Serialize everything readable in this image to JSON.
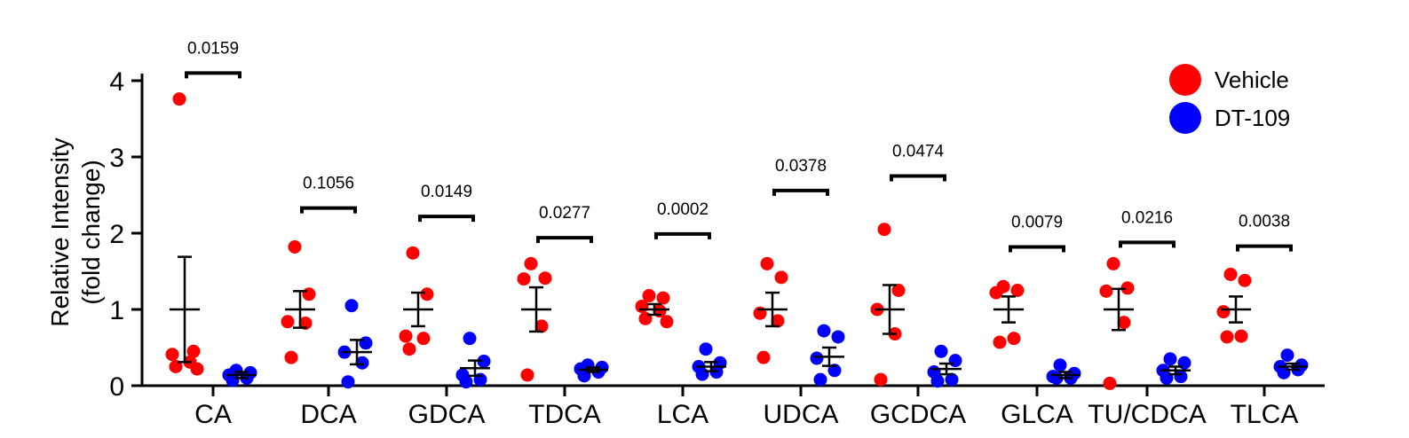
{
  "chart_data": {
    "type": "scatter",
    "title": "",
    "ylabel_line1": "Relative Intensity",
    "ylabel_line2": "(fold change)",
    "xlabel": "",
    "ylim": [
      0,
      4.2
    ],
    "yticks": [
      "0",
      "1",
      "2",
      "3",
      "4"
    ],
    "legend_position": "top-right",
    "colors": {
      "Vehicle": "#ff0000",
      "DT-109": "#0000ff",
      "axis": "#000000"
    },
    "series_names": [
      "Vehicle",
      "DT-109"
    ],
    "categories": [
      {
        "label": "CA",
        "p_value": "0.0159",
        "bracket_y": 4.1,
        "vehicle": {
          "points": [
            3.76,
            0.45,
            0.41,
            0.31,
            0.25,
            0.22
          ],
          "mean": 1.0,
          "sem": 0.69
        },
        "dt109": {
          "points": [
            0.2,
            0.17,
            0.14,
            0.1,
            0.07
          ],
          "mean": 0.14,
          "sem": 0.04
        }
      },
      {
        "label": "DCA",
        "p_value": "0.1056",
        "bracket_y": 2.33,
        "vehicle": {
          "points": [
            1.82,
            1.2,
            0.84,
            0.82,
            0.37
          ],
          "mean": 1.0,
          "sem": 0.24
        },
        "dt109": {
          "points": [
            1.05,
            0.56,
            0.44,
            0.3,
            0.05
          ],
          "mean": 0.44,
          "sem": 0.16
        }
      },
      {
        "label": "GDCA",
        "p_value": "0.0149",
        "bracket_y": 2.22,
        "vehicle": {
          "points": [
            1.74,
            1.2,
            0.65,
            0.62,
            0.48
          ],
          "mean": 1.0,
          "sem": 0.22
        },
        "dt109": {
          "points": [
            0.62,
            0.32,
            0.14,
            0.08,
            0.05
          ],
          "mean": 0.23,
          "sem": 0.1
        }
      },
      {
        "label": "TDCA",
        "p_value": "0.0277",
        "bracket_y": 1.94,
        "vehicle": {
          "points": [
            1.6,
            1.41,
            1.4,
            0.78,
            0.14
          ],
          "mean": 1.0,
          "sem": 0.29
        },
        "dt109": {
          "points": [
            0.27,
            0.24,
            0.22,
            0.18,
            0.13
          ],
          "mean": 0.21,
          "sem": 0.03
        }
      },
      {
        "label": "LCA",
        "p_value": "0.0002",
        "bracket_y": 1.99,
        "vehicle": {
          "points": [
            1.18,
            1.15,
            1.04,
            0.98,
            0.88,
            0.84
          ],
          "mean": 1.0,
          "sem": 0.07
        },
        "dt109": {
          "points": [
            0.48,
            0.3,
            0.25,
            0.18,
            0.15
          ],
          "mean": 0.25,
          "sem": 0.06
        }
      },
      {
        "label": "UDCA",
        "p_value": "0.0378",
        "bracket_y": 2.56,
        "vehicle": {
          "points": [
            1.6,
            1.42,
            0.95,
            0.85,
            0.37
          ],
          "mean": 1.0,
          "sem": 0.22
        },
        "dt109": {
          "points": [
            0.72,
            0.64,
            0.36,
            0.2,
            0.08
          ],
          "mean": 0.38,
          "sem": 0.12
        }
      },
      {
        "label": "GCDCA",
        "p_value": "0.0474",
        "bracket_y": 2.75,
        "vehicle": {
          "points": [
            2.05,
            1.25,
            1.0,
            0.68,
            0.08
          ],
          "mean": 1.0,
          "sem": 0.32
        },
        "dt109": {
          "points": [
            0.45,
            0.33,
            0.18,
            0.08,
            0.06
          ],
          "mean": 0.22,
          "sem": 0.07
        }
      },
      {
        "label": "GLCA",
        "p_value": "0.0079",
        "bracket_y": 1.82,
        "vehicle": {
          "points": [
            1.3,
            1.25,
            1.22,
            0.62,
            0.57
          ],
          "mean": 1.0,
          "sem": 0.17
        },
        "dt109": {
          "points": [
            0.27,
            0.16,
            0.12,
            0.1,
            0.1
          ],
          "mean": 0.14,
          "sem": 0.04
        }
      },
      {
        "label": "TU/CDCA",
        "p_value": "0.0216",
        "bracket_y": 1.88,
        "vehicle": {
          "points": [
            1.6,
            1.28,
            1.24,
            0.83,
            0.03
          ],
          "mean": 1.0,
          "sem": 0.27
        },
        "dt109": {
          "points": [
            0.35,
            0.3,
            0.2,
            0.12,
            0.1
          ],
          "mean": 0.2,
          "sem": 0.05
        }
      },
      {
        "label": "TLCA",
        "p_value": "0.0038",
        "bracket_y": 1.83,
        "vehicle": {
          "points": [
            1.46,
            1.38,
            0.97,
            0.65,
            0.64
          ],
          "mean": 1.0,
          "sem": 0.17
        },
        "dt109": {
          "points": [
            0.4,
            0.27,
            0.25,
            0.21,
            0.17
          ],
          "mean": 0.25,
          "sem": 0.04
        }
      }
    ]
  }
}
